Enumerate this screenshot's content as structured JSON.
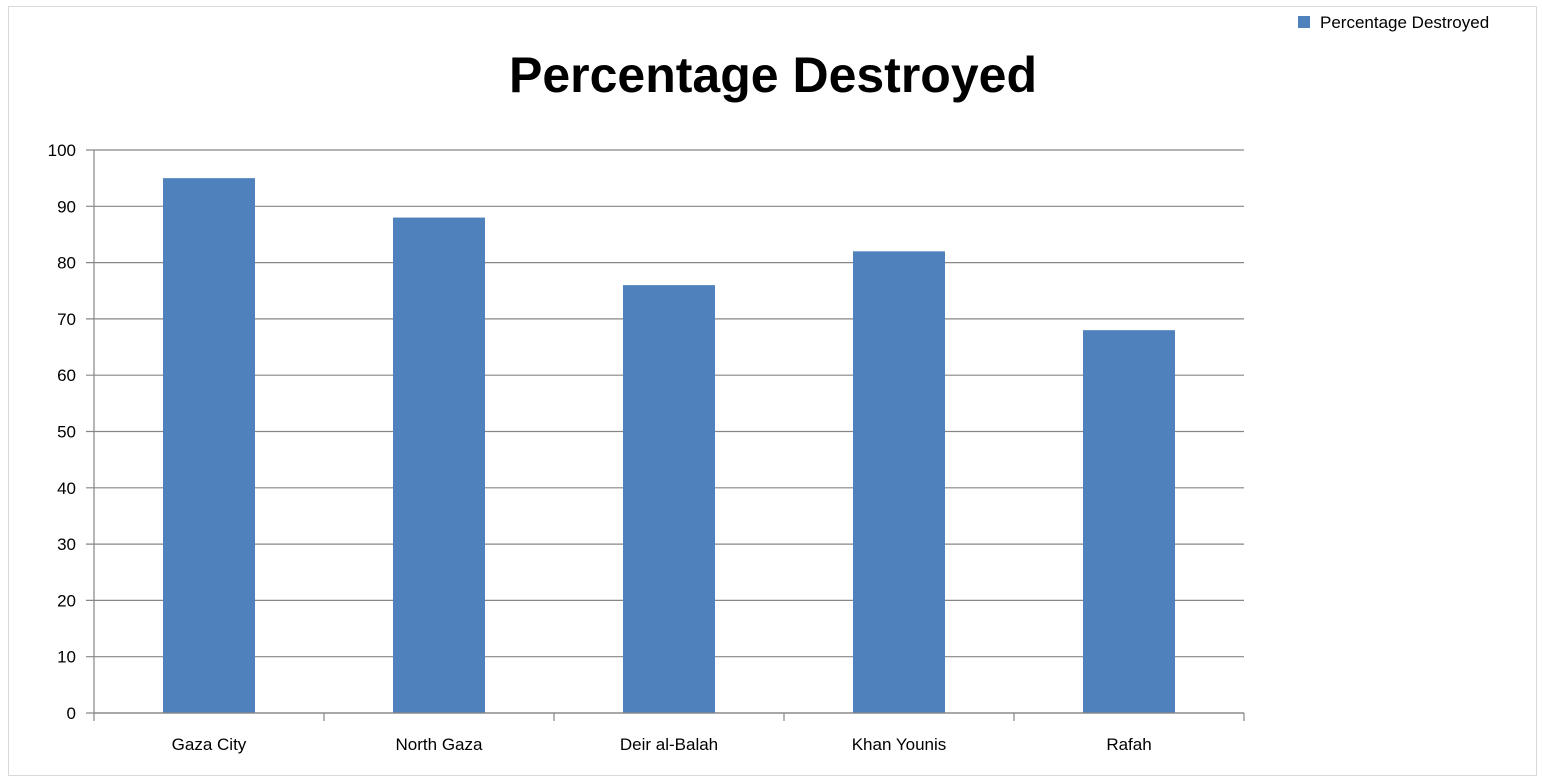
{
  "chart_data": {
    "type": "bar",
    "title": "Percentage Destroyed",
    "xlabel": "",
    "ylabel": "",
    "categories": [
      "Gaza City",
      "North Gaza",
      "Deir al-Balah",
      "Khan Younis",
      "Rafah"
    ],
    "series": [
      {
        "name": "Percentage Destroyed",
        "values": [
          95,
          88,
          76,
          82,
          68
        ],
        "color": "#4F81BD"
      }
    ],
    "ylim": [
      0,
      100
    ],
    "yticks": [
      0,
      10,
      20,
      30,
      40,
      50,
      60,
      70,
      80,
      90,
      100
    ],
    "grid": true,
    "legend": "top-right"
  }
}
